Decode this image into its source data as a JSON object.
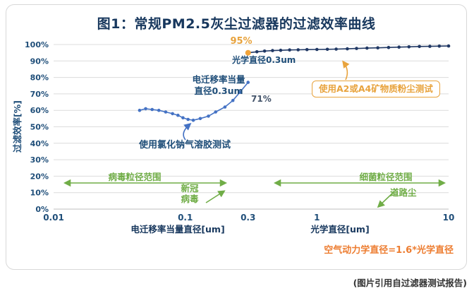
{
  "figure": {
    "title": "图1：常规PM2.5灰尘过滤器的过滤效率曲线",
    "citation": "(图片引用自过滤器测试报告)"
  },
  "colors": {
    "title": "#17375D",
    "axis_text": "#1F4E79",
    "grid": "#DCDCDC",
    "axis_line": "#BFBFBF",
    "series_nacl": "#4472C4",
    "series_mineral": "#203864",
    "highlight": "#F2A43A",
    "orange": "#E8A33D",
    "formula_orange": "#ED7D31",
    "green": "#70AD47"
  },
  "chart_data": {
    "type": "line",
    "title": "图1：常规PM2.5灰尘过滤器的过滤效率曲线",
    "x_scale": "log",
    "x_range": [
      0.01,
      10
    ],
    "y_range": [
      0,
      100
    ],
    "grid": "horizontal",
    "legend": "none",
    "ylabel": "过滤效率[%]",
    "xlabel_left": "电迁移率当量直径[um]",
    "xlabel_right": "光学直径[um]",
    "y_ticks": [
      "0%",
      "10%",
      "20%",
      "30%",
      "40%",
      "50%",
      "60%",
      "70%",
      "80%",
      "90%",
      "100%"
    ],
    "x_ticks": [
      {
        "value": 0.01,
        "label": "0.01",
        "bold": false
      },
      {
        "value": 0.1,
        "label": "0.1",
        "bold": false
      },
      {
        "value": 0.3,
        "label": "0.3",
        "bold": true
      },
      {
        "value": 1,
        "label": "1",
        "bold": false
      },
      {
        "value": 10,
        "label": "10",
        "bold": false
      }
    ],
    "series": [
      {
        "name": "使用氯化钠气溶胶测试",
        "color": "#4472C4",
        "marker": "circle",
        "highlight_first": false,
        "points": [
          [
            0.045,
            60
          ],
          [
            0.05,
            61
          ],
          [
            0.056,
            60.5
          ],
          [
            0.063,
            60
          ],
          [
            0.071,
            59
          ],
          [
            0.08,
            58
          ],
          [
            0.088,
            57
          ],
          [
            0.096,
            55.5
          ],
          [
            0.105,
            54.5
          ],
          [
            0.115,
            54
          ],
          [
            0.13,
            55
          ],
          [
            0.15,
            56.5
          ],
          [
            0.17,
            59
          ],
          [
            0.2,
            62
          ],
          [
            0.23,
            66
          ],
          [
            0.26,
            71
          ],
          [
            0.3,
            77
          ]
        ]
      },
      {
        "name": "使用A2或A4矿物质粉尘测试",
        "color": "#203864",
        "marker": "circle",
        "highlight_first": true,
        "points": [
          [
            0.3,
            95
          ],
          [
            0.35,
            95.6
          ],
          [
            0.4,
            96
          ],
          [
            0.46,
            96.3
          ],
          [
            0.53,
            96.5
          ],
          [
            0.62,
            96.7
          ],
          [
            0.72,
            96.8
          ],
          [
            0.84,
            96.9
          ],
          [
            1.0,
            97
          ],
          [
            1.2,
            97.1
          ],
          [
            1.4,
            97.2
          ],
          [
            1.7,
            97.4
          ],
          [
            2.0,
            97.6
          ],
          [
            2.4,
            97.8
          ],
          [
            2.9,
            98
          ],
          [
            3.5,
            98.2
          ],
          [
            4.2,
            98.4
          ],
          [
            5.0,
            98.6
          ],
          [
            6.0,
            98.8
          ],
          [
            7.2,
            98.9
          ],
          [
            8.5,
            99
          ],
          [
            10,
            99.1
          ]
        ]
      }
    ],
    "point_labels": [
      {
        "text": "95%",
        "x": 0.3,
        "y": 95,
        "series_index": 1
      },
      {
        "text": "71%",
        "x": 0.26,
        "y": 71,
        "series_index": 0
      }
    ]
  },
  "annotations": {
    "label_95": "95%",
    "label_71": "71%",
    "optical_diameter": "光学直径0.3um",
    "mobility_line1": "电迁移率当量",
    "mobility_line2": "直径0.3um",
    "nacl_test": "使用氯化钠气溶胶测试",
    "mineral_test": "使用A2或A4矿物质粉尘测试",
    "virus_range": "病毒粒径范围",
    "covid_line1": "新冠",
    "covid_line2": "病毒",
    "bacteria_range": "细菌粒径范围",
    "road_dust": "道路尘",
    "aero_formula": "空气动力学直径=1.6*光学直径"
  }
}
